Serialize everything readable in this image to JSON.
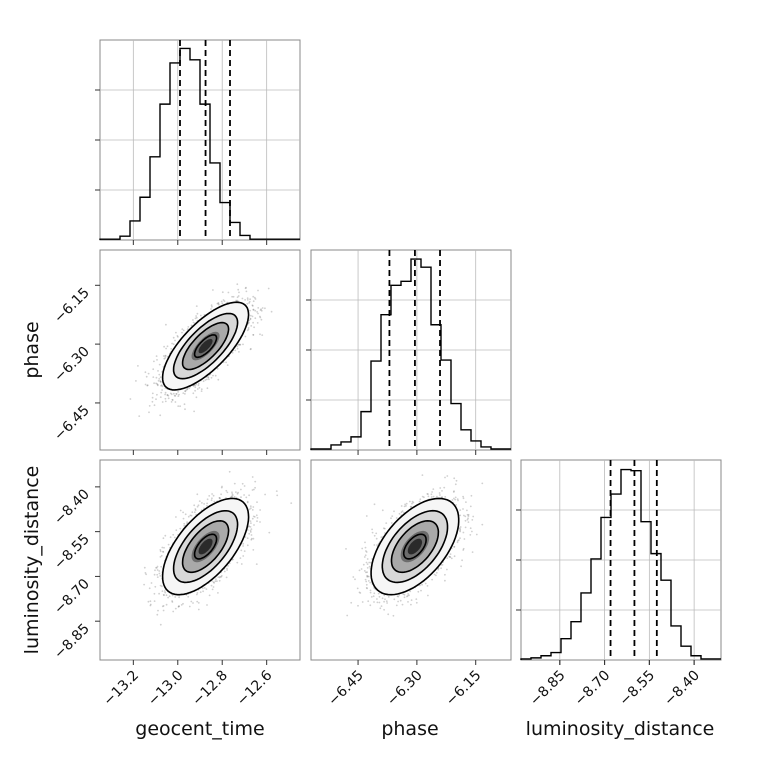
{
  "chart_data": [
    {
      "type": "histogram",
      "panel": "geocent_time (1D marginal)",
      "x_param": "geocent_time",
      "x_tick_labels": [
        "−13.2",
        "−13.0",
        "−12.8",
        "−12.6"
      ],
      "x_ticks": [
        -13.2,
        -13.0,
        -12.8,
        -12.6
      ],
      "xlim": [
        -13.35,
        -12.45
      ],
      "bins": [
        -13.35,
        -13.305,
        -13.26,
        -13.215,
        -13.17,
        -13.125,
        -13.08,
        -13.035,
        -12.99,
        -12.945,
        -12.9,
        -12.855,
        -12.81,
        -12.765,
        -12.72,
        -12.675,
        -12.63,
        -12.585,
        -12.54,
        -12.495,
        -12.45
      ],
      "counts": [
        1,
        1,
        5,
        25,
        56,
        109,
        178,
        232,
        251,
        236,
        178,
        101,
        49,
        23,
        6,
        1,
        1,
        1,
        1,
        1
      ],
      "quantile_lines": [
        -12.99,
        -12.875,
        -12.765
      ],
      "grid": true,
      "ylim_counts": [
        0,
        262
      ]
    },
    {
      "type": "histogram",
      "panel": "phase (1D marginal)",
      "x_param": "phase",
      "x_tick_labels": [
        "−6.45",
        "−6.30",
        "−6.15"
      ],
      "x_ticks": [
        -6.45,
        -6.3,
        -6.15
      ],
      "xlim": [
        -6.57,
        -6.06
      ],
      "bins": [
        -6.57,
        -6.5445,
        -6.519,
        -6.4935,
        -6.468,
        -6.4425,
        -6.417,
        -6.3915,
        -6.366,
        -6.3405,
        -6.315,
        -6.2895,
        -6.264,
        -6.2385,
        -6.213,
        -6.1875,
        -6.162,
        -6.1365,
        -6.111,
        -6.0855,
        -6.06
      ],
      "counts": [
        1,
        1,
        5,
        8,
        13,
        38,
        88,
        134,
        163,
        167,
        189,
        181,
        124,
        89,
        46,
        20,
        9,
        3,
        1,
        1
      ],
      "quantile_lines": [
        -6.37,
        -6.305,
        -6.241
      ],
      "grid": true,
      "ylim_counts": [
        0,
        198
      ]
    },
    {
      "type": "histogram",
      "panel": "luminosity_distance (1D marginal)",
      "x_param": "luminosity_distance",
      "x_tick_labels": [
        "−8.85",
        "−8.70",
        "−8.55",
        "−8.40"
      ],
      "x_ticks": [
        -8.85,
        -8.7,
        -8.55,
        -8.4
      ],
      "xlim": [
        -8.98,
        -8.31
      ],
      "bins": [
        -8.98,
        -8.9465,
        -8.913,
        -8.8795,
        -8.846,
        -8.8125,
        -8.779,
        -8.7455,
        -8.712,
        -8.6785,
        -8.645,
        -8.6115,
        -8.578,
        -8.5445,
        -8.511,
        -8.4775,
        -8.444,
        -8.4105,
        -8.377,
        -8.3435,
        -8.31
      ],
      "counts": [
        1,
        2,
        4,
        7,
        20,
        36,
        63,
        95,
        134,
        156,
        179,
        178,
        130,
        100,
        75,
        32,
        13,
        4,
        1,
        1
      ],
      "quantile_lines": [
        -8.68,
        -8.6,
        -8.525
      ],
      "grid": true,
      "ylim_counts": [
        0,
        188
      ]
    },
    {
      "type": "scatter-contour",
      "panel": "phase vs geocent_time",
      "x_param": "geocent_time",
      "y_param": "phase",
      "y_tick_labels": [
        "−6.15",
        "−6.30",
        "−6.45"
      ],
      "y_ticks": [
        -6.15,
        -6.3,
        -6.45
      ],
      "xlim": [
        -13.35,
        -12.45
      ],
      "ylim": [
        -6.57,
        -6.06
      ],
      "mean": [
        -12.875,
        -6.305
      ],
      "sigma": [
        0.09,
        0.052
      ],
      "rho": 0.72
    },
    {
      "type": "scatter-contour",
      "panel": "luminosity_distance vs geocent_time",
      "x_param": "geocent_time",
      "y_param": "luminosity_distance",
      "y_tick_labels": [
        "−8.40",
        "−8.55",
        "−8.70",
        "−8.85"
      ],
      "y_ticks": [
        -8.4,
        -8.55,
        -8.7,
        -8.85
      ],
      "xlim": [
        -13.35,
        -12.45
      ],
      "ylim": [
        -8.98,
        -8.31
      ],
      "mean": [
        -12.875,
        -8.6
      ],
      "sigma": [
        0.09,
        0.075
      ],
      "rho": 0.62
    },
    {
      "type": "scatter-contour",
      "panel": "luminosity_distance vs phase",
      "x_param": "phase",
      "y_param": "luminosity_distance",
      "xlim": [
        -6.57,
        -6.06
      ],
      "ylim": [
        -8.98,
        -8.31
      ],
      "mean": [
        -6.305,
        -8.6
      ],
      "sigma": [
        0.052,
        0.075
      ],
      "rho": 0.55
    }
  ],
  "labels": {
    "x_bottom_1": "geocent_time",
    "x_bottom_2": "phase",
    "x_bottom_3": "luminosity_distance",
    "y_row_2": "phase",
    "y_row_3": "luminosity_distance"
  }
}
